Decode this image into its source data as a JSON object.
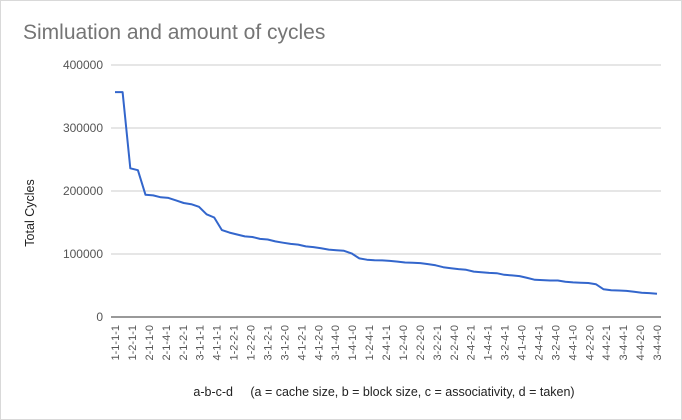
{
  "chart_data": {
    "type": "line",
    "title": "Simluation and amount of cycles",
    "ylabel": "Total Cycles",
    "xlabel": "a-b-c-d     (a = cache size, b = block size, c = associativity, d = taken)",
    "ylim": [
      0,
      400000
    ],
    "yticks": [
      0,
      100000,
      200000,
      300000,
      400000
    ],
    "ytick_labels": [
      "0",
      "100000",
      "200000",
      "300000",
      "400000"
    ],
    "grid": true,
    "legend": "none",
    "line_color": "#3366cc",
    "x_tick_labels": [
      "1-1-1-1",
      "1-2-1-1",
      "2-1-1-0",
      "2-1-4-1",
      "2-1-2-1",
      "3-1-1-1",
      "4-1-1-1",
      "1-2-2-1",
      "1-2-2-0",
      "3-1-2-1",
      "3-1-2-0",
      "4-1-2-1",
      "4-1-2-0",
      "3-1-4-0",
      "1-4-1-0",
      "1-2-4-1",
      "2-4-1-1",
      "1-2-4-0",
      "2-2-2-0",
      "3-2-2-1",
      "2-2-4-0",
      "2-4-2-1",
      "1-4-4-1",
      "3-2-4-1",
      "4-1-4-0",
      "2-4-4-1",
      "3-2-4-0",
      "4-4-1-0",
      "4-2-2-0",
      "4-4-2-1",
      "3-4-4-1",
      "4-4-2-0",
      "3-4-4-0"
    ],
    "values": [
      357000,
      357000,
      236000,
      233000,
      194000,
      193000,
      190000,
      189000,
      185000,
      181000,
      179000,
      175000,
      163000,
      158000,
      138000,
      134000,
      131000,
      128000,
      127000,
      124000,
      123000,
      120000,
      118000,
      116000,
      115000,
      112000,
      111000,
      109000,
      107000,
      106000,
      105000,
      101000,
      93000,
      91000,
      90000,
      89800,
      89000,
      88000,
      86500,
      86000,
      85500,
      84000,
      82000,
      79000,
      77500,
      76000,
      75000,
      72000,
      71000,
      70000,
      69500,
      67000,
      66000,
      65000,
      62000,
      59000,
      58500,
      58000,
      58000,
      56000,
      55000,
      54500,
      54000,
      52000,
      44000,
      42500,
      42000,
      41500,
      40000,
      38500,
      38000,
      37000
    ]
  }
}
